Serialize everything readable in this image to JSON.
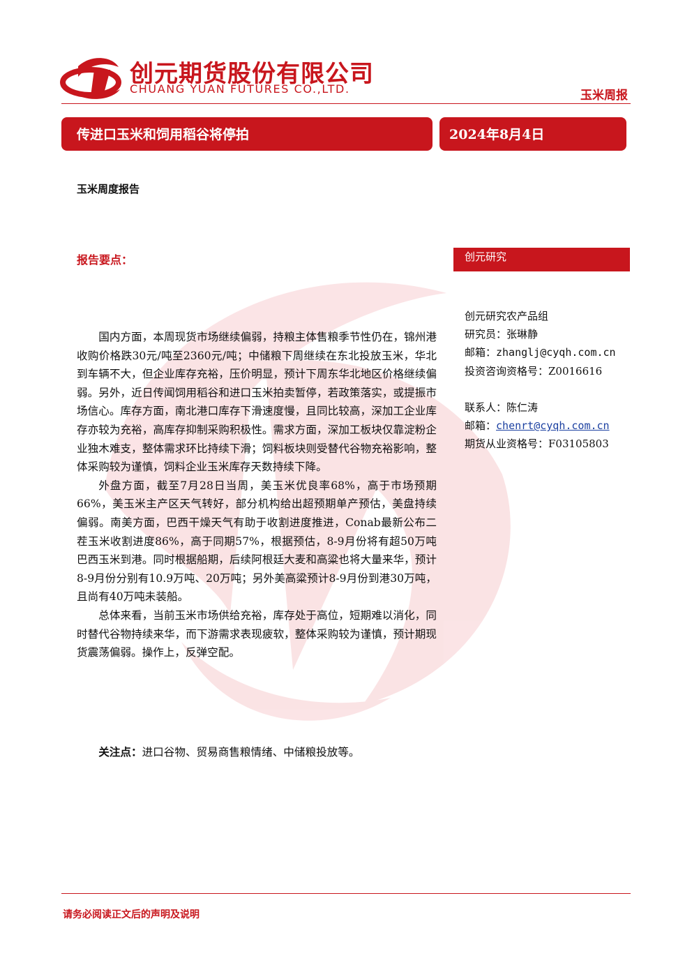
{
  "header": {
    "company_cn": "创元期货股份有限公司",
    "company_en": "CHUANG YUAN FUTURES CO.,LTD.",
    "report_type": "玉米周报"
  },
  "banner": {
    "title": "传进口玉米和饲用稻谷将停拍",
    "date": "2024年8月4日"
  },
  "subtitle": "玉米周度报告",
  "key_points_label": "报告要点：",
  "sidebar": {
    "label": "创元研究",
    "group": "创元研究农产品组",
    "researcher": "研究员：张琳静",
    "email": "邮箱：zhanglj@cyqh.com.cn",
    "qualification": "投资咨询资格号：Z0016616",
    "contact": "联系人：陈仁涛",
    "contact_email_label": "邮箱：",
    "contact_email": "chenrt@cyqh.com.cn",
    "contact_qualification": "期货从业资格号：F03105803"
  },
  "paragraphs": [
    "国内方面，本周现货市场继续偏弱，持粮主体售粮季节性仍在，锦州港收购价格跌30元/吨至2360元/吨；中储粮下周继续在东北投放玉米，华北到车辆不大，但企业库存充裕，压价明显，预计下周东华北地区价格继续偏弱。另外，近日传闻饲用稻谷和进口玉米拍卖暂停，若政策落实，或提振市场信心。库存方面，南北港口库存下滑速度慢，且同比较高，深加工企业库存亦较为充裕，高库存抑制采购积极性。需求方面，深加工板块仅靠淀粉企业独木难支，整体需求环比持续下滑；饲料板块则受替代谷物充裕影响，整体采购较为谨慎，饲料企业玉米库存天数持续下降。",
    "外盘方面，截至7月28日当周，美玉米优良率68%，高于市场预期66%，美玉米主产区天气转好，部分机构给出超预期单产预估，美盘持续偏弱。南美方面，巴西干燥天气有助于收割进度推进，Conab最新公布二茬玉米收割进度86%，高于同期57%，根据预估，8-9月份将有超50万吨巴西玉米到港。同时根据船期，后续阿根廷大麦和高粱也将大量来华，预计8-9月份分别有10.9万吨、20万吨；另外美高粱预计8-9月份到港30万吨，且尚有40万吨未装船。",
    "总体来看，当前玉米市场供给充裕，库存处于高位，短期难以消化，同时替代谷物持续来华，而下游需求表现疲软，整体采购较为谨慎，预计期现货震荡偏弱。操作上，反弹空配。"
  ],
  "focus": {
    "label": "关注点：",
    "text": "进口谷物、贸易商售粮情绪、中储粮投放等。"
  },
  "footer": "请务必阅读正文后的声明及说明"
}
